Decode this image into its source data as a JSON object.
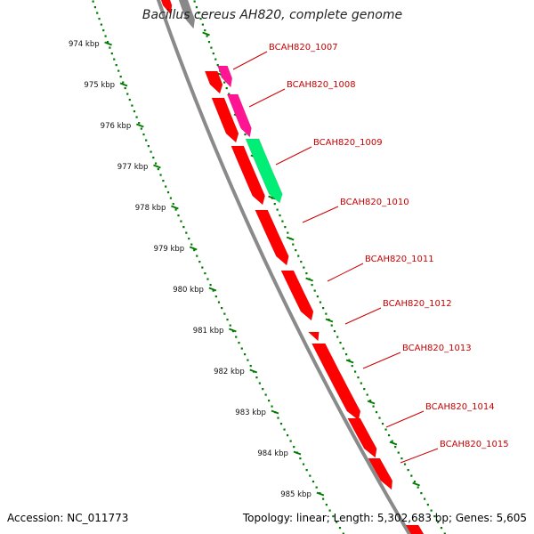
{
  "title": "Bacillus cereus AH820, complete genome",
  "footer": {
    "accession": "Accession: NC_011773",
    "topology": "Topology: linear; Length: 5,302,683 bp; Genes: 5,605"
  },
  "ruler": {
    "labels": [
      "974 kbp",
      "975 kbp",
      "976 kbp",
      "977 kbp",
      "978 kbp",
      "979 kbp",
      "980 kbp",
      "981 kbp",
      "982 kbp",
      "983 kbp",
      "984 kbp",
      "985 kbp"
    ]
  },
  "genes": [
    "BCAH820_1007",
    "BCAH820_1008",
    "BCAH820_1009",
    "BCAH820_1010",
    "BCAH820_1011",
    "BCAH820_1012",
    "BCAH820_1013",
    "BCAH820_1014",
    "BCAH820_1015"
  ],
  "colors": {
    "gene_red": "#ff0000",
    "gene_magenta": "#ff1493",
    "gene_green": "#00ee76",
    "ruler_green": "#007a00",
    "backbone": "#8a8a8a",
    "label_red": "#cc0000"
  }
}
